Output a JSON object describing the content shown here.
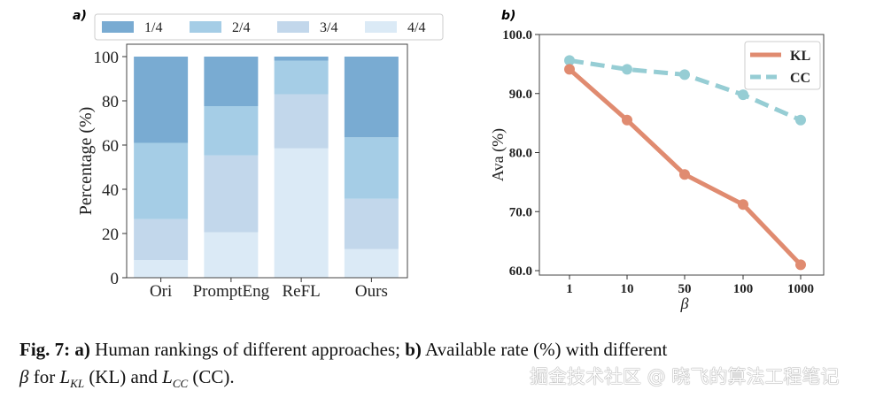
{
  "chart_data": [
    {
      "type": "bar",
      "stacked": true,
      "panel_label": "a)",
      "categories": [
        "Ori",
        "PromptEng",
        "ReFL",
        "Ours"
      ],
      "ylabel": "Percentage (%)",
      "xlabel": "",
      "ylim": [
        0,
        100
      ],
      "yticks": [
        "0",
        "20",
        "40",
        "60",
        "80",
        "100"
      ],
      "legend_position": "top",
      "series": [
        {
          "name": "4/4",
          "color": "#dbeaf6",
          "values": [
            8.0,
            20.6,
            58.5,
            13.0
          ]
        },
        {
          "name": "3/4",
          "color": "#c2d7eb",
          "values": [
            18.5,
            34.7,
            24.5,
            22.7
          ]
        },
        {
          "name": "2/4",
          "color": "#a5cde6",
          "values": [
            34.5,
            22.3,
            15.2,
            27.8
          ]
        },
        {
          "name": "1/4",
          "color": "#79abd2",
          "values": [
            39.0,
            22.4,
            1.8,
            36.5
          ]
        }
      ],
      "legend_order": [
        "1/4",
        "2/4",
        "3/4",
        "4/4"
      ]
    },
    {
      "type": "line",
      "panel_label": "b)",
      "x": [
        "1",
        "10",
        "50",
        "100",
        "1000"
      ],
      "xlabel": "β",
      "ylabel": "Ava (%)",
      "ylim": [
        59.5,
        100
      ],
      "yticks": [
        "60.0",
        "70.0",
        "80.0",
        "90.0",
        "100.0"
      ],
      "legend_position": "top-right",
      "series": [
        {
          "name": "KL",
          "color": "#e08b70",
          "style": "solid",
          "values": [
            94.1,
            85.5,
            76.3,
            71.2,
            61.0
          ]
        },
        {
          "name": "CC",
          "color": "#96cdd4",
          "style": "dashed",
          "values": [
            95.6,
            94.1,
            93.2,
            89.8,
            85.5
          ]
        }
      ]
    }
  ],
  "caption": {
    "fig": "Fig. 7:",
    "a_label": "a)",
    "a_text": " Human rankings of different approaches; ",
    "b_label": "b)",
    "b_text": " Available rate (%) with different",
    "line2_beta": "β",
    "line2_for": " for ",
    "l_kl": "L",
    "kl_sub": "KL",
    "kl_text": " (KL) and ",
    "l_cc": "L",
    "cc_sub": "CC",
    "cc_text": " (CC)."
  },
  "watermark": "掘金技术社区 @ 晓飞的算法工程笔记"
}
